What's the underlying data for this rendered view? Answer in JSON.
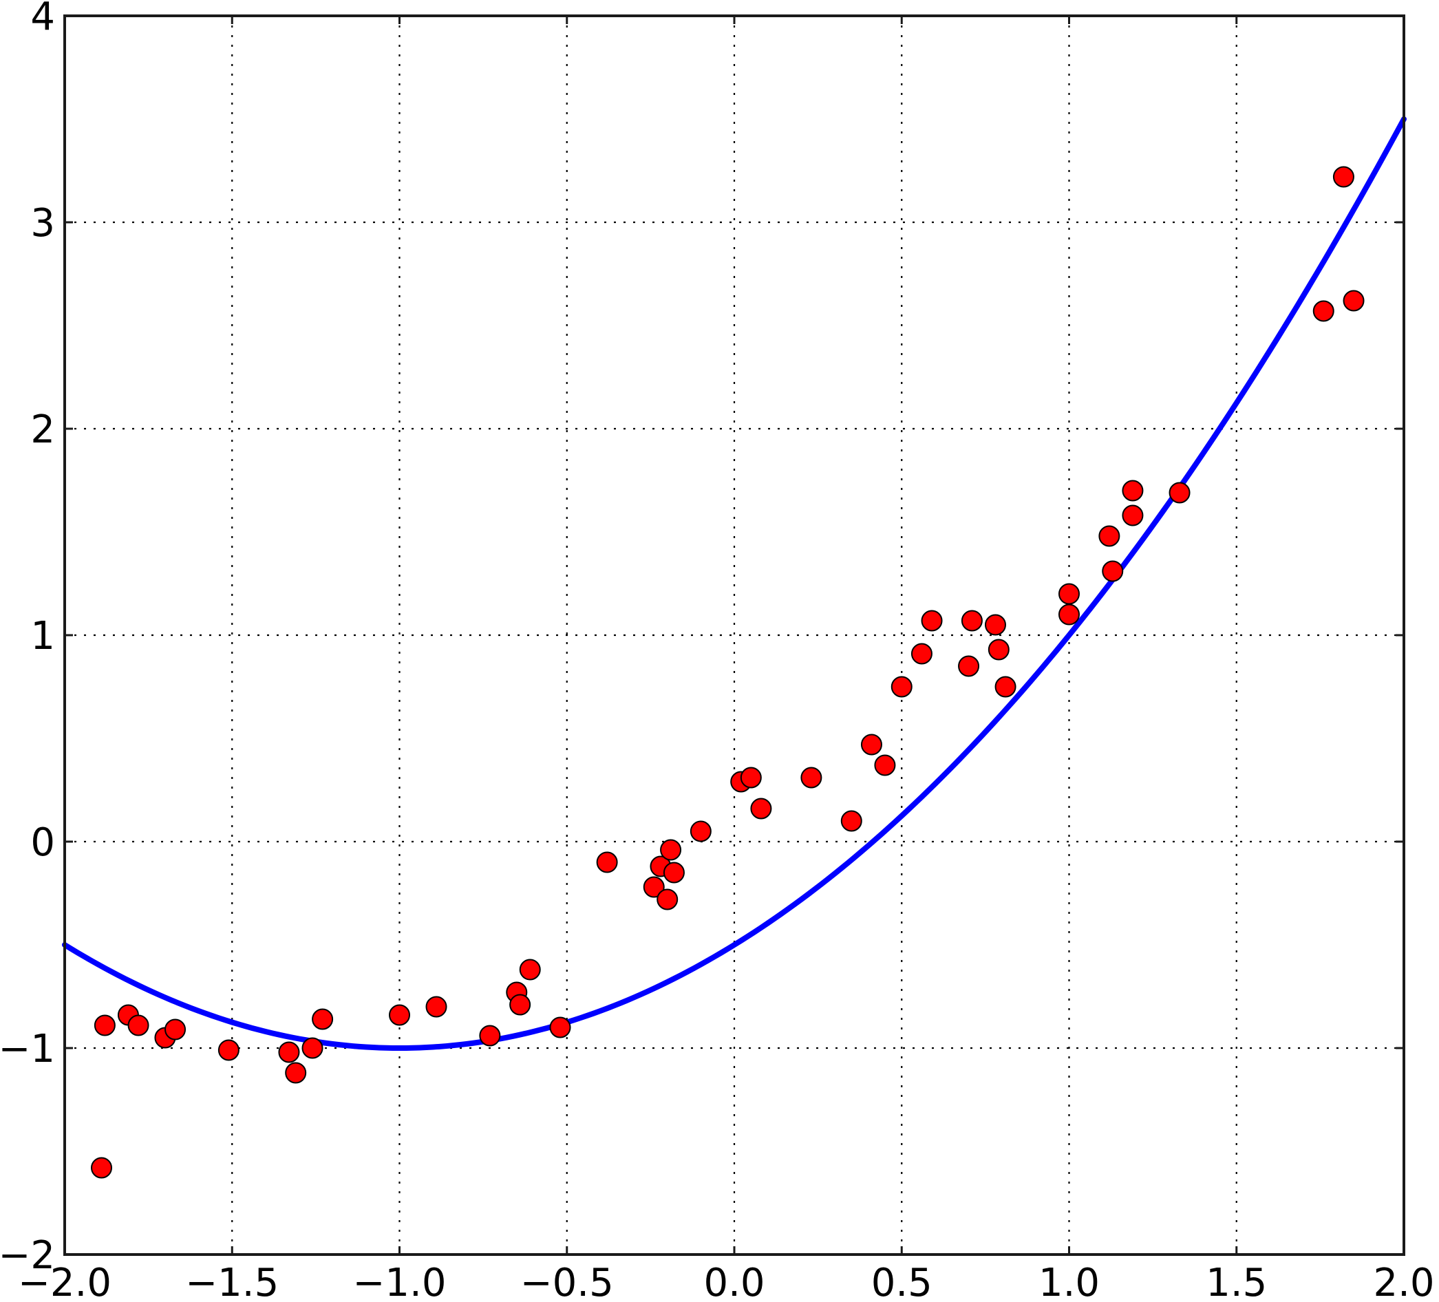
{
  "chart_data": {
    "type": "scatter",
    "title": "",
    "xlabel": "",
    "ylabel": "",
    "xlim": [
      -2.0,
      2.0
    ],
    "ylim": [
      -2,
      4
    ],
    "grid": true,
    "x_ticks": [
      "−2.0",
      "−1.5",
      "−1.0",
      "−0.5",
      "0.0",
      "0.5",
      "1.0",
      "1.5",
      "2.0"
    ],
    "x_tick_values": [
      -2.0,
      -1.5,
      -1.0,
      -0.5,
      0.0,
      0.5,
      1.0,
      1.5,
      2.0
    ],
    "y_ticks": [
      "−2",
      "−1",
      "0",
      "1",
      "2",
      "3",
      "4"
    ],
    "y_tick_values": [
      -2,
      -1,
      0,
      1,
      2,
      3,
      4
    ],
    "colors": {
      "points": "#ff0000",
      "point_edge": "#000000",
      "fit": "#0000ff"
    },
    "series": [
      {
        "kind": "points",
        "x": [
          -1.88,
          -1.81,
          -1.78,
          -1.7,
          -1.67,
          -1.89,
          -1.51,
          -1.33,
          -1.31,
          -1.26,
          -1.23,
          -1.0,
          -0.89,
          -0.73,
          -0.65,
          -0.64,
          -0.61,
          -0.52,
          -0.38,
          -0.24,
          -0.22,
          -0.2,
          -0.19,
          -0.18,
          -0.1,
          0.02,
          0.05,
          0.08,
          0.23,
          0.35,
          0.41,
          0.45,
          0.5,
          0.56,
          0.59,
          0.7,
          0.71,
          0.78,
          0.79,
          0.81,
          1.0,
          1.0,
          1.12,
          1.13,
          1.19,
          1.19,
          1.33,
          1.76,
          1.82,
          1.85
        ],
        "y": [
          -0.89,
          -0.84,
          -0.89,
          -0.95,
          -0.91,
          -1.58,
          -1.01,
          -1.02,
          -1.12,
          -1.0,
          -0.86,
          -0.84,
          -0.8,
          -0.94,
          -0.73,
          -0.79,
          -0.62,
          -0.9,
          -0.1,
          -0.22,
          -0.12,
          -0.28,
          -0.04,
          -0.15,
          0.05,
          0.29,
          0.31,
          0.16,
          0.31,
          0.1,
          0.47,
          0.37,
          0.75,
          0.91,
          1.07,
          0.85,
          1.07,
          1.05,
          0.93,
          0.75,
          1.2,
          1.1,
          1.48,
          1.31,
          1.7,
          1.58,
          1.69,
          2.57,
          3.22,
          2.62
        ]
      },
      {
        "kind": "line",
        "equation": "y = 0.5x^2 + x - 0.5",
        "coefficients": [
          0.5,
          1.0,
          -0.5
        ],
        "x_range": [
          -2.0,
          2.0
        ]
      }
    ]
  }
}
